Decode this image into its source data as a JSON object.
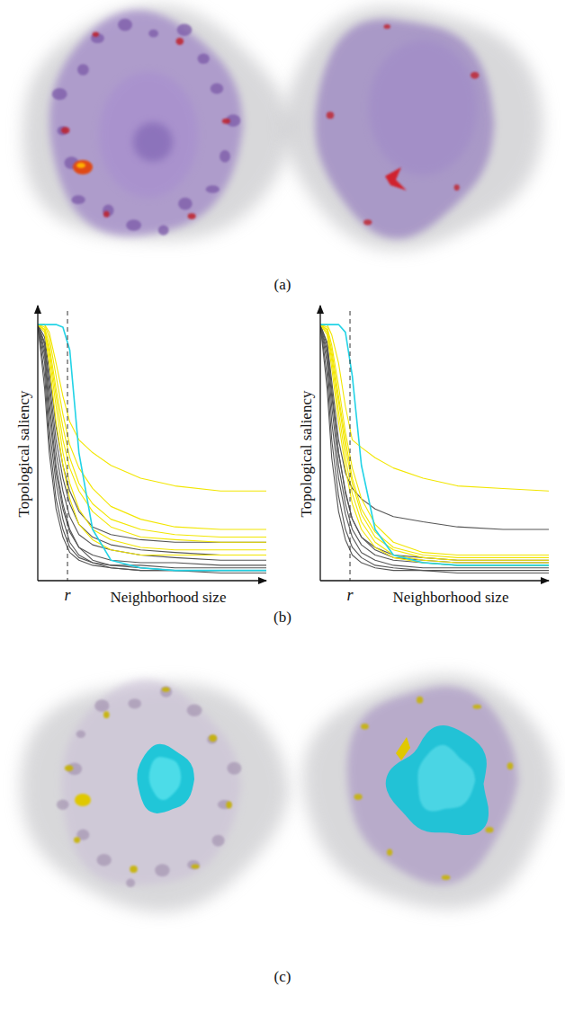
{
  "captions": [
    "(a)",
    "(b)",
    "(c)"
  ],
  "chart_data": [
    {
      "type": "line",
      "xlabel": "Neighborhood size",
      "ylabel": "Topological saliency",
      "xlim": [
        0,
        100
      ],
      "ylim": [
        0,
        1.06
      ],
      "tick_labels": false,
      "annotations": [
        {
          "text": "r",
          "x": 13
        }
      ],
      "x": [
        0,
        3,
        5,
        8,
        11,
        14,
        18,
        24,
        32,
        45,
        60,
        80,
        100
      ],
      "series": [
        {
          "color": "#555555",
          "values": [
            1,
            0.9,
            0.7,
            0.45,
            0.3,
            0.2,
            0.13,
            0.08,
            0.06,
            0.05,
            0.04,
            0.04,
            0.04
          ]
        },
        {
          "color": "#555555",
          "values": [
            1,
            0.85,
            0.6,
            0.38,
            0.24,
            0.15,
            0.1,
            0.07,
            0.05,
            0.04,
            0.04,
            0.03,
            0.03
          ]
        },
        {
          "color": "#555555",
          "values": [
            1,
            0.93,
            0.78,
            0.55,
            0.4,
            0.3,
            0.22,
            0.17,
            0.14,
            0.12,
            0.11,
            0.1,
            0.1
          ]
        },
        {
          "color": "#555555",
          "values": [
            1,
            0.95,
            0.82,
            0.6,
            0.45,
            0.35,
            0.27,
            0.21,
            0.18,
            0.16,
            0.15,
            0.15,
            0.15
          ]
        },
        {
          "color": "#555555",
          "values": [
            1,
            0.8,
            0.55,
            0.32,
            0.2,
            0.13,
            0.09,
            0.07,
            0.06,
            0.06,
            0.05,
            0.05,
            0.05
          ]
        },
        {
          "color": "#555555",
          "values": [
            1,
            0.88,
            0.66,
            0.42,
            0.28,
            0.19,
            0.13,
            0.1,
            0.08,
            0.07,
            0.07,
            0.06,
            0.06
          ]
        },
        {
          "color": "#555555",
          "values": [
            1,
            0.92,
            0.75,
            0.5,
            0.35,
            0.25,
            0.18,
            0.14,
            0.12,
            0.1,
            0.09,
            0.08,
            0.08
          ]
        },
        {
          "color": "#555555",
          "values": [
            1,
            0.75,
            0.5,
            0.28,
            0.17,
            0.11,
            0.08,
            0.06,
            0.05,
            0.04,
            0.04,
            0.04,
            0.04
          ]
        },
        {
          "color": "#f2e600",
          "values": [
            1,
            1,
            0.97,
            0.85,
            0.72,
            0.62,
            0.55,
            0.5,
            0.45,
            0.4,
            0.37,
            0.35,
            0.35
          ]
        },
        {
          "color": "#f2e600",
          "values": [
            1,
            1,
            0.95,
            0.8,
            0.65,
            0.53,
            0.44,
            0.36,
            0.29,
            0.24,
            0.21,
            0.2,
            0.2
          ]
        },
        {
          "color": "#f2e600",
          "values": [
            1,
            0.99,
            0.92,
            0.75,
            0.6,
            0.48,
            0.38,
            0.3,
            0.24,
            0.2,
            0.18,
            0.17,
            0.17
          ]
        },
        {
          "color": "#f2e600",
          "values": [
            1,
            0.98,
            0.9,
            0.72,
            0.55,
            0.44,
            0.35,
            0.27,
            0.21,
            0.17,
            0.16,
            0.15,
            0.15
          ]
        },
        {
          "color": "#f2e600",
          "values": [
            1,
            0.98,
            0.88,
            0.68,
            0.5,
            0.38,
            0.28,
            0.2,
            0.16,
            0.13,
            0.12,
            0.12,
            0.12
          ]
        },
        {
          "color": "#f2e600",
          "values": [
            1,
            0.97,
            0.85,
            0.62,
            0.45,
            0.32,
            0.22,
            0.16,
            0.12,
            0.1,
            0.1,
            0.1,
            0.1
          ]
        },
        {
          "color": "#22d3e6",
          "values": [
            1,
            1,
            1,
            1,
            0.99,
            0.9,
            0.5,
            0.2,
            0.08,
            0.05,
            0.04,
            0.04,
            0.04
          ]
        }
      ]
    },
    {
      "type": "line",
      "xlabel": "Neighborhood size",
      "ylabel": "Topological saliency",
      "xlim": [
        0,
        100
      ],
      "ylim": [
        0,
        1.06
      ],
      "tick_labels": false,
      "annotations": [
        {
          "text": "r",
          "x": 13
        }
      ],
      "x": [
        0,
        3,
        5,
        8,
        11,
        14,
        18,
        24,
        32,
        45,
        60,
        80,
        100
      ],
      "series": [
        {
          "color": "#555555",
          "values": [
            1,
            0.93,
            0.78,
            0.55,
            0.42,
            0.36,
            0.32,
            0.28,
            0.25,
            0.23,
            0.21,
            0.2,
            0.2
          ]
        },
        {
          "color": "#555555",
          "values": [
            1,
            0.9,
            0.72,
            0.5,
            0.35,
            0.24,
            0.17,
            0.12,
            0.09,
            0.08,
            0.07,
            0.07,
            0.07
          ]
        },
        {
          "color": "#555555",
          "values": [
            1,
            0.85,
            0.62,
            0.4,
            0.26,
            0.17,
            0.11,
            0.08,
            0.06,
            0.05,
            0.05,
            0.05,
            0.05
          ]
        },
        {
          "color": "#555555",
          "values": [
            1,
            0.8,
            0.55,
            0.33,
            0.2,
            0.13,
            0.09,
            0.06,
            0.05,
            0.04,
            0.04,
            0.04,
            0.04
          ]
        },
        {
          "color": "#555555",
          "values": [
            1,
            0.88,
            0.68,
            0.45,
            0.3,
            0.2,
            0.14,
            0.1,
            0.08,
            0.07,
            0.06,
            0.06,
            0.06
          ]
        },
        {
          "color": "#555555",
          "values": [
            1,
            0.75,
            0.48,
            0.27,
            0.16,
            0.1,
            0.07,
            0.05,
            0.04,
            0.04,
            0.03,
            0.03,
            0.03
          ]
        },
        {
          "color": "#555555",
          "values": [
            1,
            0.92,
            0.75,
            0.5,
            0.34,
            0.24,
            0.17,
            0.13,
            0.1,
            0.09,
            0.08,
            0.08,
            0.08
          ]
        },
        {
          "color": "#f2e600",
          "values": [
            1,
            1,
            0.96,
            0.85,
            0.68,
            0.55,
            0.52,
            0.48,
            0.44,
            0.4,
            0.37,
            0.36,
            0.35
          ]
        },
        {
          "color": "#f2e600",
          "values": [
            1,
            0.99,
            0.92,
            0.76,
            0.58,
            0.44,
            0.32,
            0.22,
            0.15,
            0.11,
            0.1,
            0.1,
            0.1
          ]
        },
        {
          "color": "#f2e600",
          "values": [
            1,
            0.98,
            0.9,
            0.72,
            0.55,
            0.4,
            0.28,
            0.19,
            0.13,
            0.1,
            0.09,
            0.09,
            0.09
          ]
        },
        {
          "color": "#f2e600",
          "values": [
            1,
            0.98,
            0.88,
            0.7,
            0.52,
            0.38,
            0.26,
            0.17,
            0.12,
            0.09,
            0.08,
            0.08,
            0.08
          ]
        },
        {
          "color": "#f2e600",
          "values": [
            1,
            0.97,
            0.86,
            0.66,
            0.48,
            0.34,
            0.23,
            0.15,
            0.1,
            0.08,
            0.07,
            0.07,
            0.07
          ]
        },
        {
          "color": "#f2e600",
          "values": [
            1,
            0.96,
            0.83,
            0.62,
            0.44,
            0.3,
            0.2,
            0.13,
            0.09,
            0.07,
            0.06,
            0.06,
            0.06
          ]
        },
        {
          "color": "#22d3e6",
          "values": [
            1,
            1,
            1,
            1,
            0.97,
            0.8,
            0.45,
            0.2,
            0.1,
            0.07,
            0.06,
            0.06,
            0.06
          ]
        }
      ]
    }
  ]
}
